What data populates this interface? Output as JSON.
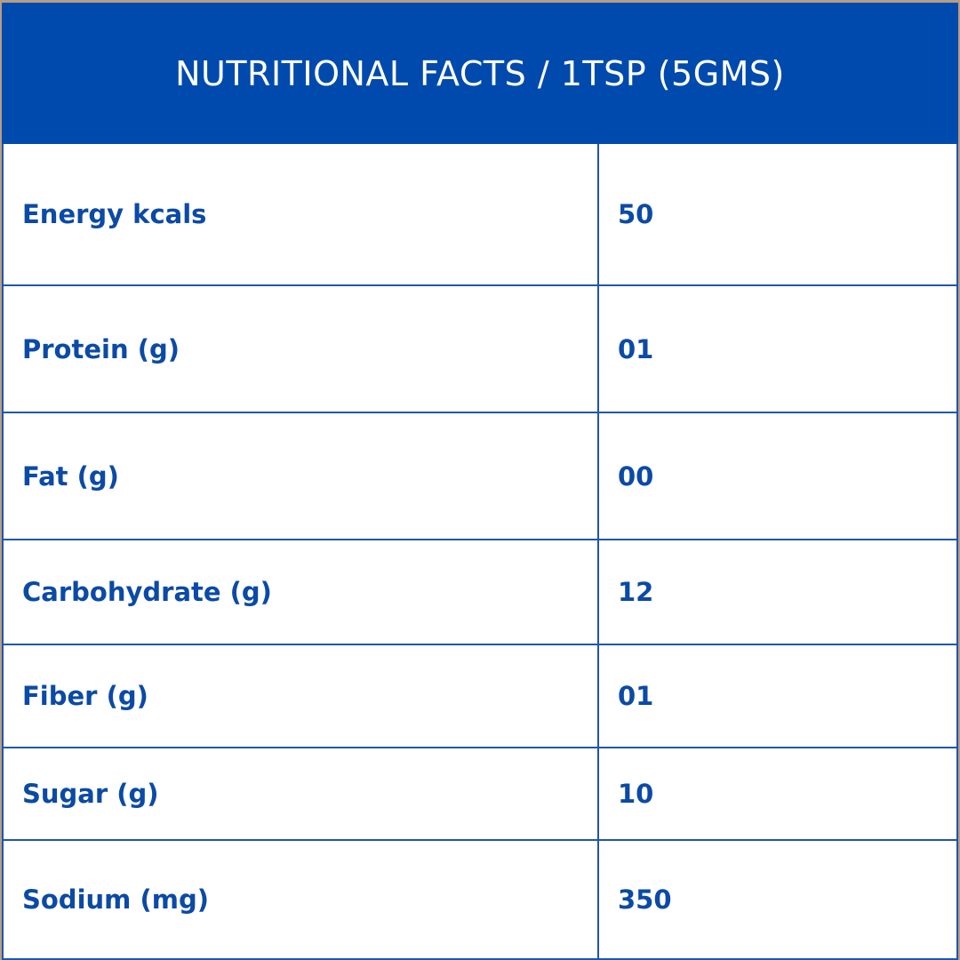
{
  "header": {
    "title": "NUTRITIONAL FACTS / 1TSP (5GMS)"
  },
  "table": {
    "rows": [
      [
        "Energy kcals",
        "50"
      ],
      [
        "Protein (g)",
        "01"
      ],
      [
        "Fat (g)",
        "00"
      ],
      [
        "Carbohydrate (g)",
        "12"
      ],
      [
        "Fiber (g)",
        "01"
      ],
      [
        "Sugar (g)",
        "10"
      ],
      [
        "Sodium (mg)",
        "350"
      ]
    ]
  }
}
